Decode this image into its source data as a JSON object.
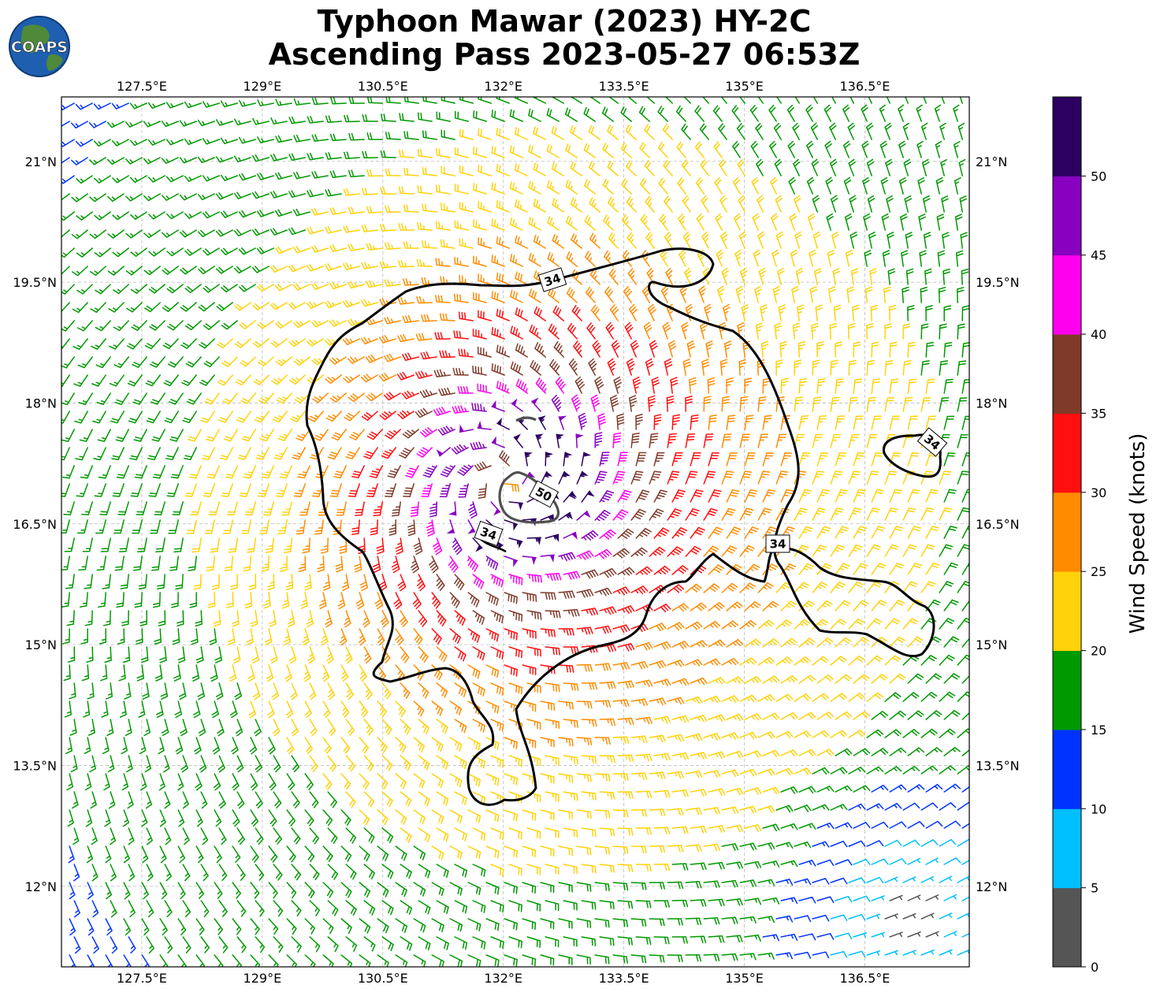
{
  "title": {
    "line1": "Typhoon Mawar (2023) HY-2C",
    "line2": "Ascending Pass 2023-05-27 06:53Z"
  },
  "logo": {
    "text": "COAPS",
    "icon": "globe-icon"
  },
  "map": {
    "lon_range": [
      126.5,
      137.8
    ],
    "lat_range": [
      11.0,
      21.8
    ],
    "lon_ticks": [
      "127.5°E",
      "129°E",
      "130.5°E",
      "132°E",
      "133.5°E",
      "135°E",
      "136.5°E"
    ],
    "lat_ticks": [
      "21°N",
      "19.5°N",
      "18°N",
      "16.5°N",
      "15°N",
      "13.5°N",
      "12°N"
    ],
    "grid": true,
    "storm_center": [
      132.0,
      17.05
    ],
    "contour_labels": [
      "34",
      "34",
      "34",
      "34",
      "50"
    ]
  },
  "colorbar": {
    "label": "Wind Speed (knots)",
    "tick_labels": [
      "0",
      "5",
      "10",
      "15",
      "20",
      "25",
      "30",
      "35",
      "40",
      "45",
      "50"
    ],
    "colors": [
      "#555555",
      "#00bfff",
      "#0033ff",
      "#009900",
      "#ffd20a",
      "#ff8c00",
      "#ff0f0f",
      "#803a2a",
      "#ff00ee",
      "#8800c0",
      "#2b0060"
    ]
  }
}
